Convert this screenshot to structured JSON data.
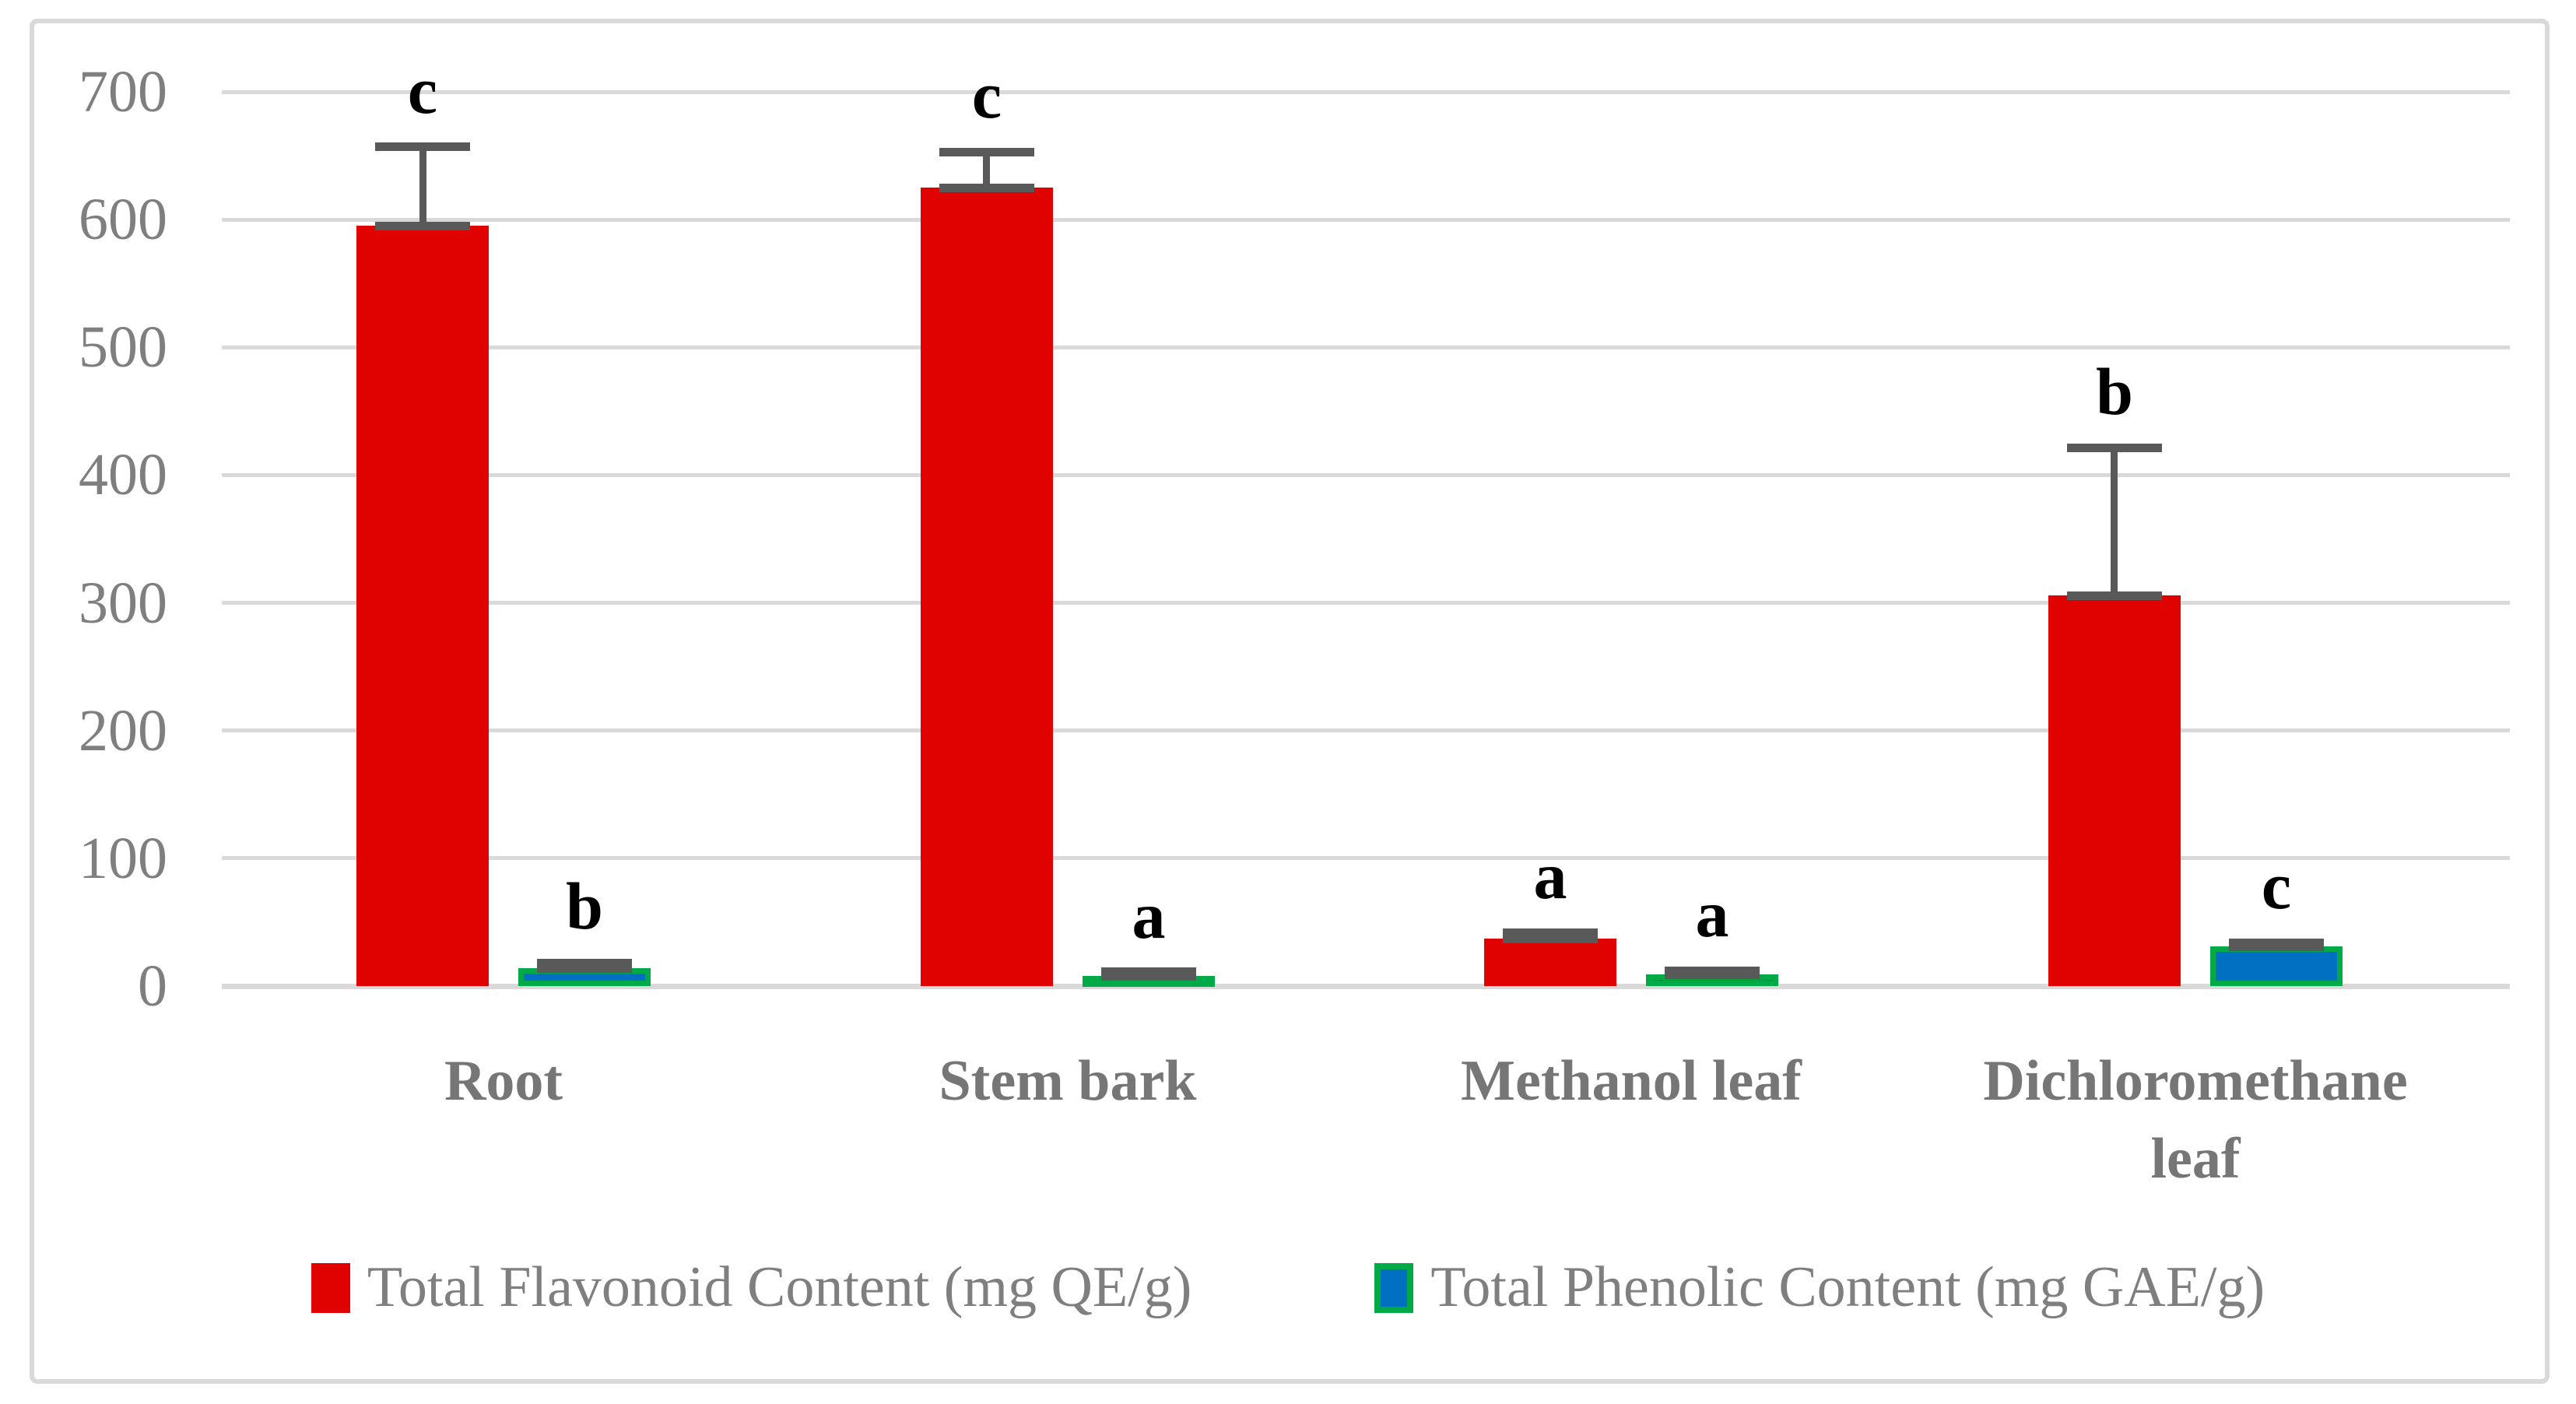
{
  "figure": {
    "background": "#ffffff",
    "frame_border_color": "#d9d9d9"
  },
  "chart_data": {
    "type": "bar",
    "title": "",
    "xlabel": "",
    "ylabel": "",
    "categories": [
      "Root",
      "Stem bark",
      "Methanol leaf",
      "Dichloromethane leaf"
    ],
    "series": [
      {
        "name": "Total Flavonoid Content (mg QE/g)",
        "color": "#df0201",
        "values": [
          595,
          625,
          37,
          306
        ],
        "error_up": [
          62,
          28,
          5,
          115
        ],
        "sig_letters": [
          "c",
          "c",
          "a",
          "b"
        ]
      },
      {
        "name": "Total Phenolic Content (mg GAE/g)",
        "color": "#0270c2",
        "border_color": "#00aa46",
        "values": [
          14,
          8,
          9,
          31
        ],
        "error_up": [
          4,
          3,
          3,
          3
        ],
        "sig_letters": [
          "b",
          "a",
          "a",
          "c"
        ]
      }
    ],
    "ylim": [
      0,
      700
    ],
    "yticks": [
      0,
      100,
      200,
      300,
      400,
      500,
      600,
      700
    ],
    "grid": true,
    "gridline_color": "#d9d9d9",
    "error_bar_color": "#595959",
    "axis_text_color": "#7f7f7f",
    "sig_letter_color": "#000000",
    "legend_position": "bottom"
  }
}
